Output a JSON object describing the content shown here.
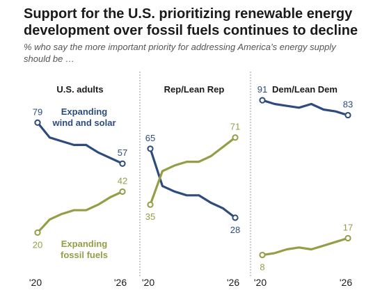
{
  "title": "Support for the U.S. prioritizing renewable energy development over fossil fuels continues to decline",
  "subtitle": "% who say the more important priority for addressing America’s energy supply should be …",
  "colors": {
    "renewable": "#2d4b7c",
    "fossil": "#959d47",
    "divider": "#9a9a9a",
    "text": "#1a1a1a"
  },
  "chart_data": [
    {
      "type": "line",
      "panel_title": "U.S. adults",
      "x_tick_labels": [
        "'20",
        "'26"
      ],
      "ylim": [
        0,
        100
      ],
      "series": [
        {
          "name": "Expanding wind and solar",
          "label_lines": [
            "Expanding",
            "wind and solar"
          ],
          "key": "renewable",
          "values": [
            79,
            71,
            69,
            67,
            67,
            63,
            60,
            57
          ],
          "first_label": "79",
          "last_label": "57"
        },
        {
          "name": "Expanding fossil fuels",
          "label_lines": [
            "Expanding",
            "fossil fuels"
          ],
          "key": "fossil",
          "values": [
            20,
            27,
            30,
            32,
            32,
            35,
            39,
            42
          ],
          "first_label": "20",
          "last_label": "42"
        }
      ]
    },
    {
      "type": "line",
      "panel_title": "Rep/Lean Rep",
      "x_tick_labels": [
        "'20",
        "'26"
      ],
      "ylim": [
        0,
        100
      ],
      "series": [
        {
          "key": "renewable",
          "values": [
            65,
            45,
            42,
            40,
            40,
            36,
            33,
            28
          ],
          "first_label": "65",
          "last_label": "28"
        },
        {
          "key": "fossil",
          "values": [
            35,
            53,
            56,
            58,
            58,
            61,
            66,
            71
          ],
          "first_label": "35",
          "last_label": "71"
        }
      ]
    },
    {
      "type": "line",
      "panel_title": "Dem/Lean Dem",
      "x_tick_labels": [
        "'20",
        "'26"
      ],
      "ylim": [
        0,
        100
      ],
      "series": [
        {
          "key": "renewable",
          "values": [
            91,
            89,
            88,
            87,
            89,
            86,
            85,
            83
          ],
          "first_label": "91",
          "last_label": "83"
        },
        {
          "key": "fossil",
          "values": [
            8,
            9,
            11,
            12,
            11,
            13,
            15,
            17
          ],
          "first_label": "8",
          "last_label": "17"
        }
      ]
    }
  ]
}
